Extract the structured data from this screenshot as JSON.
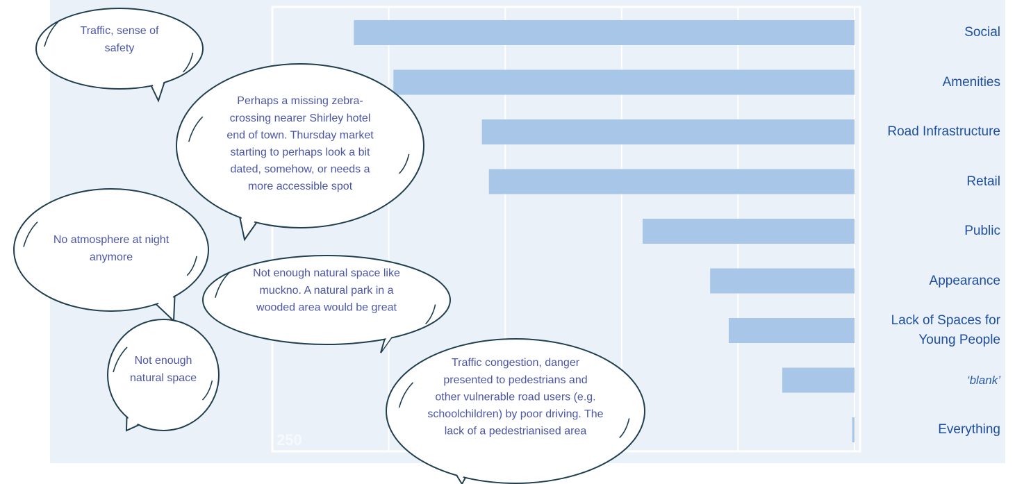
{
  "chart_data": {
    "type": "bar",
    "orientation": "horizontal",
    "categories": [
      "Social",
      "Amenities",
      "Road Infrastructure",
      "Retail",
      "Public",
      "Appearance",
      "Lack of Spaces for Young People",
      "‘blank’",
      "Everything"
    ],
    "values": [
      215,
      198,
      160,
      157,
      91,
      62,
      54,
      31,
      1
    ],
    "color": "#a8c6e8",
    "xlim": [
      250,
      0
    ],
    "xticks": [
      {
        "value": 250,
        "label": "250"
      },
      {
        "value": 200,
        "label": null
      },
      {
        "value": 150,
        "label": null
      },
      {
        "value": 100,
        "label": null
      },
      {
        "value": 50,
        "label": null
      },
      {
        "value": 0,
        "label": null
      }
    ],
    "grid": true,
    "annotations": [
      [
        "Traffic, sense of",
        "safety"
      ],
      [
        "Perhaps a missing zebra-",
        "crossing nearer Shirley hotel",
        "end of town. Thursday market",
        "starting to perhaps look a bit",
        "dated, somehow, or needs a",
        "more accessible spot"
      ],
      [
        "No atmosphere at night",
        "anymore"
      ],
      [
        "Not enough natural space like",
        "muckno. A natural park in a",
        "wooded area would be great"
      ],
      [
        "Not enough",
        "natural space"
      ],
      [
        "Traffic congestion, danger",
        "presented to pedestrians and",
        "other vulnerable road users (e.g.",
        "schoolchildren) by poor driving. The",
        "lack of a pedestrianised area"
      ]
    ]
  }
}
